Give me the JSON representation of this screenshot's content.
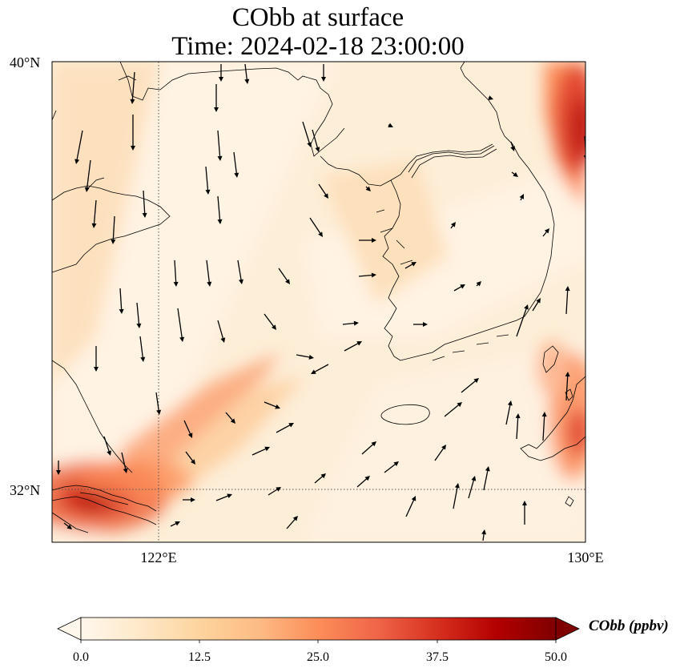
{
  "title_line1": "CObb at surface",
  "title_line2": "Time: 2024-02-18 23:00:00",
  "lat_labels": [
    "40°N",
    "32°N"
  ],
  "lon_labels": [
    "122°E",
    "130°E"
  ],
  "colorbar": {
    "label": "CObb (ppbv)",
    "ticks": [
      "0.0",
      "12.5",
      "25.0",
      "37.5",
      "50.0"
    ],
    "range": [
      0,
      50
    ],
    "extend": "both",
    "colormap": "OrRd",
    "colors": [
      "#fff7ec",
      "#fee8c8",
      "#fdd49e",
      "#fdbb84",
      "#fc8d59",
      "#ef6548",
      "#d7301f",
      "#b30000",
      "#7f0000"
    ]
  },
  "map": {
    "extent_lon": [
      120,
      130
    ],
    "extent_lat": [
      31,
      40
    ],
    "gridlines": {
      "lon": [
        122,
        130
      ],
      "lat": [
        32,
        40
      ],
      "style": "dotted"
    },
    "field_description_features": [
      "high CObb plume over Yangtze estuary near 120-121E 31.5-32N",
      "high CObb along eastern edge near 129-130E 38-40N",
      "high CObb near Kyushu/Tsushima 129-130E 33-34N"
    ]
  }
}
